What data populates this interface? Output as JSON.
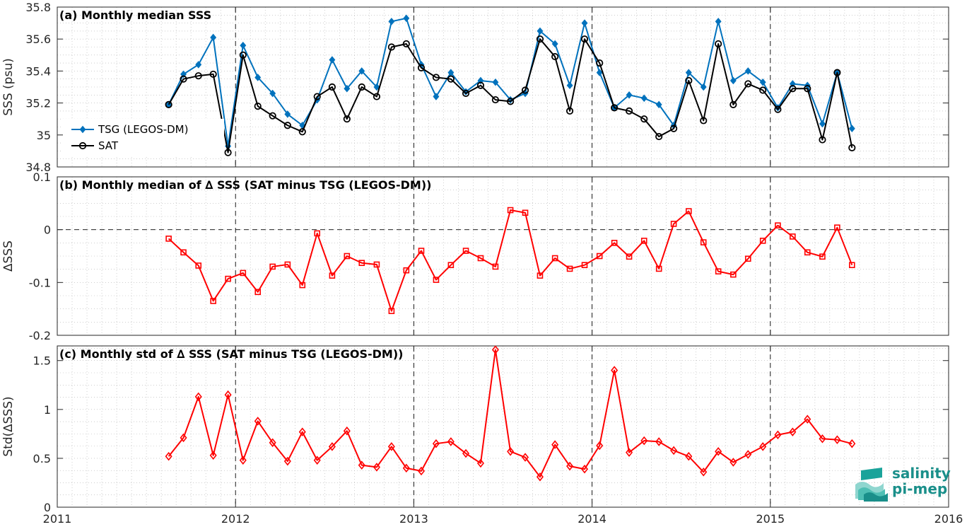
{
  "colors": {
    "tsg": "#0072bd",
    "sat": "#000000",
    "delta": "#ff0000",
    "grid": "#b0b0b0",
    "axis": "#262626",
    "logo": "#1a8f8a"
  },
  "logo": {
    "line1": "salinity",
    "line2": "pi-mep"
  },
  "chart_data": [
    {
      "type": "line",
      "title": "(a) Monthly median SSS",
      "xlabel": "",
      "ylabel": "SSS (psu)",
      "xlim": [
        2011,
        2016
      ],
      "ylim": [
        34.8,
        35.8
      ],
      "yticks": [
        34.8,
        35,
        35.2,
        35.4,
        35.6,
        35.8
      ],
      "ytick_labels": [
        "34.8",
        "35",
        "35.2",
        "35.4",
        "35.6",
        "35.8"
      ],
      "xticks": [
        2011,
        2012,
        2013,
        2014,
        2015,
        2016
      ],
      "xtick_labels": [
        "",
        "",
        "",
        "",
        "",
        ""
      ],
      "vlines": [
        2012,
        2013,
        2014,
        2015
      ],
      "grid": true,
      "legend": "lower-left",
      "x": [
        2011.625,
        2011.708,
        2011.792,
        2011.875,
        2011.958,
        2012.042,
        2012.125,
        2012.208,
        2012.292,
        2012.375,
        2012.458,
        2012.542,
        2012.625,
        2012.708,
        2012.792,
        2012.875,
        2012.958,
        2013.042,
        2013.125,
        2013.208,
        2013.292,
        2013.375,
        2013.458,
        2013.542,
        2013.625,
        2013.708,
        2013.792,
        2013.875,
        2013.958,
        2014.042,
        2014.125,
        2014.208,
        2014.292,
        2014.375,
        2014.458,
        2014.542,
        2014.625,
        2014.708,
        2014.792,
        2014.875,
        2014.958,
        2015.042,
        2015.125,
        2015.208,
        2015.292,
        2015.375,
        2015.458
      ],
      "series": [
        {
          "name": "TSG (LEGOS-DM)",
          "marker": "diamond-filled",
          "values": [
            35.19,
            35.38,
            35.44,
            35.61,
            34.93,
            35.56,
            35.36,
            35.26,
            35.13,
            35.06,
            35.22,
            35.47,
            35.29,
            35.4,
            35.3,
            35.71,
            35.73,
            35.44,
            35.24,
            35.39,
            35.27,
            35.34,
            35.33,
            35.22,
            35.26,
            35.65,
            35.57,
            35.31,
            35.7,
            35.39,
            35.17,
            35.25,
            35.23,
            35.19,
            35.06,
            35.39,
            35.3,
            35.71,
            35.34,
            35.4,
            35.33,
            35.17,
            35.32,
            35.31,
            35.07,
            35.39,
            35.04
          ]
        },
        {
          "name": "SAT",
          "marker": "circle-open",
          "values": [
            35.19,
            35.35,
            35.37,
            35.38,
            34.89,
            35.5,
            35.18,
            35.12,
            35.06,
            35.02,
            35.24,
            35.3,
            35.1,
            35.3,
            35.24,
            35.55,
            35.57,
            35.42,
            35.36,
            35.35,
            35.26,
            35.31,
            35.22,
            35.21,
            35.28,
            35.6,
            35.49,
            35.15,
            35.6,
            35.45,
            35.17,
            35.15,
            35.1,
            34.99,
            35.04,
            35.34,
            35.09,
            35.57,
            35.19,
            35.32,
            35.28,
            35.16,
            35.29,
            35.29,
            34.97,
            35.39,
            34.92
          ]
        }
      ]
    },
    {
      "type": "line",
      "title": "(b) Monthly median of ∆ SSS (SAT minus TSG (LEGOS-DM))",
      "xlabel": "",
      "ylabel": "∆SSS",
      "xlim": [
        2011,
        2016
      ],
      "ylim": [
        -0.2,
        0.1
      ],
      "yticks": [
        -0.2,
        -0.1,
        0,
        0.1
      ],
      "ytick_labels": [
        "-0.2",
        "-0.1",
        "0",
        "0.1"
      ],
      "xticks": [
        2011,
        2012,
        2013,
        2014,
        2015,
        2016
      ],
      "xtick_labels": [
        "",
        "",
        "",
        "",
        "",
        ""
      ],
      "vlines": [
        2012,
        2013,
        2014,
        2015
      ],
      "hline": 0,
      "grid": true,
      "legend": "none",
      "x": [
        2011.625,
        2011.708,
        2011.792,
        2011.875,
        2011.958,
        2012.042,
        2012.125,
        2012.208,
        2012.292,
        2012.375,
        2012.458,
        2012.542,
        2012.625,
        2012.708,
        2012.792,
        2012.875,
        2012.958,
        2013.042,
        2013.125,
        2013.208,
        2013.292,
        2013.375,
        2013.458,
        2013.542,
        2013.625,
        2013.708,
        2013.792,
        2013.875,
        2013.958,
        2014.042,
        2014.125,
        2014.208,
        2014.292,
        2014.375,
        2014.458,
        2014.542,
        2014.625,
        2014.708,
        2014.792,
        2014.875,
        2014.958,
        2015.042,
        2015.125,
        2015.208,
        2015.292,
        2015.375,
        2015.458
      ],
      "series": [
        {
          "name": "",
          "marker": "square-open",
          "values": [
            -0.017,
            -0.043,
            -0.068,
            -0.135,
            -0.093,
            -0.082,
            -0.118,
            -0.07,
            -0.066,
            -0.105,
            -0.007,
            -0.087,
            -0.05,
            -0.063,
            -0.066,
            -0.154,
            -0.077,
            -0.04,
            -0.095,
            -0.067,
            -0.04,
            -0.054,
            -0.07,
            0.037,
            0.032,
            -0.087,
            -0.054,
            -0.074,
            -0.067,
            -0.05,
            -0.025,
            -0.051,
            -0.021,
            -0.074,
            0.011,
            0.035,
            -0.024,
            -0.079,
            -0.085,
            -0.055,
            -0.021,
            0.008,
            -0.013,
            -0.043,
            -0.051,
            0.004,
            -0.067
          ]
        }
      ]
    },
    {
      "type": "line",
      "title": "(c) Monthly std of ∆ SSS (SAT minus TSG (LEGOS-DM))",
      "xlabel": "",
      "ylabel": "Std(∆SSS)",
      "xlim": [
        2011,
        2016
      ],
      "ylim": [
        0,
        1.65
      ],
      "yticks": [
        0,
        0.5,
        1,
        1.5
      ],
      "ytick_labels": [
        "0",
        "0.5",
        "1",
        "1.5"
      ],
      "xticks": [
        2011,
        2012,
        2013,
        2014,
        2015,
        2016
      ],
      "xtick_labels": [
        "2011",
        "2012",
        "2013",
        "2014",
        "2015",
        "2016"
      ],
      "vlines": [
        2012,
        2013,
        2014,
        2015
      ],
      "grid": true,
      "legend": "none",
      "x": [
        2011.625,
        2011.708,
        2011.792,
        2011.875,
        2011.958,
        2012.042,
        2012.125,
        2012.208,
        2012.292,
        2012.375,
        2012.458,
        2012.542,
        2012.625,
        2012.708,
        2012.792,
        2012.875,
        2012.958,
        2013.042,
        2013.125,
        2013.208,
        2013.292,
        2013.375,
        2013.458,
        2013.542,
        2013.625,
        2013.708,
        2013.792,
        2013.875,
        2013.958,
        2014.042,
        2014.125,
        2014.208,
        2014.292,
        2014.375,
        2014.458,
        2014.542,
        2014.625,
        2014.708,
        2014.792,
        2014.875,
        2014.958,
        2015.042,
        2015.125,
        2015.208,
        2015.292,
        2015.375,
        2015.458
      ],
      "series": [
        {
          "name": "",
          "marker": "diamond-open",
          "values": [
            0.52,
            0.71,
            1.13,
            0.53,
            1.15,
            0.48,
            0.88,
            0.66,
            0.47,
            0.77,
            0.48,
            0.62,
            0.78,
            0.43,
            0.41,
            0.62,
            0.4,
            0.37,
            0.65,
            0.67,
            0.55,
            0.45,
            1.61,
            0.57,
            0.51,
            0.31,
            0.64,
            0.42,
            0.39,
            0.63,
            1.4,
            0.56,
            0.68,
            0.67,
            0.58,
            0.52,
            0.36,
            0.57,
            0.46,
            0.54,
            0.62,
            0.74,
            0.77,
            0.9,
            0.7,
            0.69,
            0.65
          ]
        }
      ]
    }
  ]
}
